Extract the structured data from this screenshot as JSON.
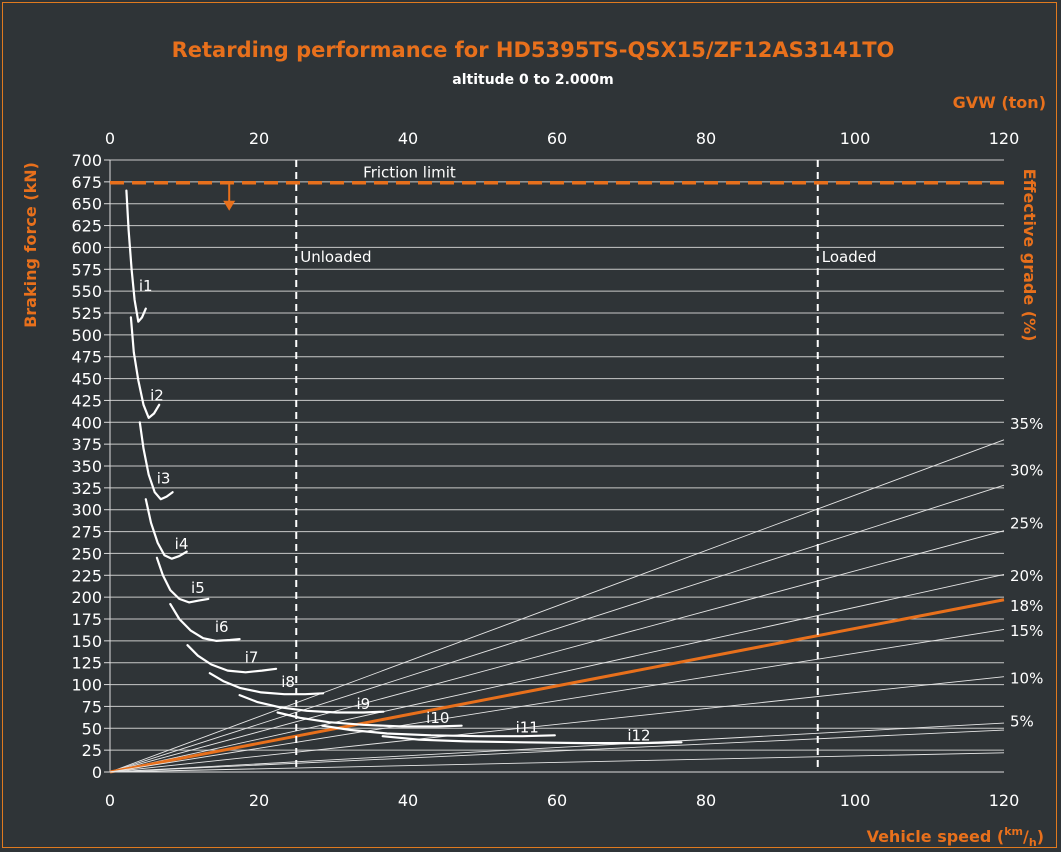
{
  "chart_data": {
    "type": "line",
    "title": "Retarding performance for HD5395TS-QSX15/ZF12AS3141TO",
    "subtitle": "altitude 0 to 2.000m",
    "xlabel": "Vehicle speed",
    "xlabel_unit_num": "km",
    "xlabel_unit_den": "h",
    "ylabel": "Braking force (kN)",
    "y2label": "Effective grade (%)",
    "x2label": "GVW (ton)",
    "xlim": [
      0,
      120
    ],
    "ylim": [
      0,
      700
    ],
    "x2lim": [
      0,
      120
    ],
    "xticks": [
      0,
      20,
      40,
      60,
      80,
      100,
      120
    ],
    "x2ticks": [
      0,
      20,
      40,
      60,
      80,
      100,
      120
    ],
    "yticks": [
      0,
      25,
      50,
      75,
      100,
      125,
      150,
      175,
      200,
      225,
      250,
      275,
      300,
      325,
      350,
      375,
      400,
      425,
      450,
      475,
      500,
      525,
      550,
      575,
      600,
      625,
      650,
      675,
      700
    ],
    "grid": true,
    "friction_limit": {
      "label": "Friction limit",
      "value": 674,
      "color": "#e8701c",
      "arrow_x": 16
    },
    "gvw_markers": [
      {
        "label": "Unloaded",
        "gvw": 25
      },
      {
        "label": "Loaded",
        "gvw": 95
      }
    ],
    "grade_lines": [
      {
        "label": "35%",
        "end_force": 380,
        "label_force": 398
      },
      {
        "label": "30%",
        "end_force": 328,
        "label_force": 345
      },
      {
        "label": "25%",
        "end_force": 276,
        "label_force": 284
      },
      {
        "label": "20%",
        "end_force": 226,
        "label_force": 224
      },
      {
        "label": "18%",
        "end_force": 197,
        "label_force": 190,
        "highlight": true,
        "color": "#e8701c"
      },
      {
        "label": "15%",
        "end_force": 163,
        "label_force": 161
      },
      {
        "label": "10%",
        "end_force": 109,
        "label_force": 107
      },
      {
        "label": "5%",
        "end_force": 56,
        "label_force": 58
      },
      {
        "label": "",
        "end_force": 48
      },
      {
        "label": "",
        "end_force": 22
      }
    ],
    "gears": [
      {
        "name": "i1",
        "label_x": 4.8,
        "label_y": 550,
        "points": [
          [
            2.2,
            665
          ],
          [
            2.5,
            620
          ],
          [
            2.9,
            575
          ],
          [
            3.3,
            540
          ],
          [
            3.8,
            515
          ],
          [
            4.3,
            520
          ],
          [
            4.8,
            530
          ]
        ]
      },
      {
        "name": "i2",
        "label_x": 6.3,
        "label_y": 425,
        "points": [
          [
            2.8,
            520
          ],
          [
            3.2,
            480
          ],
          [
            3.8,
            448
          ],
          [
            4.5,
            420
          ],
          [
            5.2,
            405
          ],
          [
            5.9,
            410
          ],
          [
            6.6,
            420
          ]
        ]
      },
      {
        "name": "i3",
        "label_x": 7.2,
        "label_y": 330,
        "points": [
          [
            4.0,
            400
          ],
          [
            4.5,
            370
          ],
          [
            5.2,
            340
          ],
          [
            6.0,
            320
          ],
          [
            6.8,
            312
          ],
          [
            7.6,
            315
          ],
          [
            8.4,
            320
          ]
        ]
      },
      {
        "name": "i4",
        "label_x": 9.6,
        "label_y": 255,
        "points": [
          [
            4.8,
            312
          ],
          [
            5.5,
            285
          ],
          [
            6.4,
            262
          ],
          [
            7.3,
            248
          ],
          [
            8.3,
            244
          ],
          [
            9.3,
            247
          ],
          [
            10.3,
            252
          ]
        ]
      },
      {
        "name": "i5",
        "label_x": 11.8,
        "label_y": 205,
        "points": [
          [
            6.3,
            245
          ],
          [
            7.1,
            225
          ],
          [
            8.1,
            208
          ],
          [
            9.3,
            198
          ],
          [
            10.6,
            194
          ],
          [
            11.9,
            196
          ],
          [
            13.2,
            198
          ]
        ]
      },
      {
        "name": "i6",
        "label_x": 15.0,
        "label_y": 160,
        "points": [
          [
            8.1,
            192
          ],
          [
            9.3,
            175
          ],
          [
            10.8,
            162
          ],
          [
            12.5,
            153
          ],
          [
            14.3,
            150
          ],
          [
            16.1,
            151
          ],
          [
            17.4,
            152
          ]
        ]
      },
      {
        "name": "i7",
        "label_x": 19.0,
        "label_y": 125,
        "points": [
          [
            10.4,
            145
          ],
          [
            11.8,
            133
          ],
          [
            13.6,
            123
          ],
          [
            15.8,
            116
          ],
          [
            18.2,
            114
          ],
          [
            20.4,
            116
          ],
          [
            22.3,
            118
          ]
        ]
      },
      {
        "name": "i8",
        "label_x": 23.9,
        "label_y": 97,
        "points": [
          [
            13.4,
            113
          ],
          [
            15.2,
            104
          ],
          [
            17.5,
            96
          ],
          [
            20.3,
            91
          ],
          [
            23.4,
            89
          ],
          [
            26.2,
            89
          ],
          [
            28.6,
            90
          ]
        ]
      },
      {
        "name": "i9",
        "label_x": 34.0,
        "label_y": 72,
        "points": [
          [
            17.4,
            88
          ],
          [
            19.8,
            80
          ],
          [
            22.8,
            74
          ],
          [
            26.4,
            70
          ],
          [
            30.4,
            68
          ],
          [
            34.0,
            68
          ],
          [
            36.7,
            69
          ]
        ]
      },
      {
        "name": "i10",
        "label_x": 44.0,
        "label_y": 56,
        "points": [
          [
            22.5,
            68
          ],
          [
            25.5,
            62
          ],
          [
            29.4,
            57
          ],
          [
            34.0,
            54
          ],
          [
            39.2,
            52
          ],
          [
            43.8,
            52
          ],
          [
            47.2,
            53
          ]
        ]
      },
      {
        "name": "i11",
        "label_x": 56.0,
        "label_y": 45,
        "points": [
          [
            28.5,
            53
          ],
          [
            32.3,
            48
          ],
          [
            37.2,
            44
          ],
          [
            43.1,
            42
          ],
          [
            49.6,
            41
          ],
          [
            55.4,
            41
          ],
          [
            59.7,
            42
          ]
        ]
      },
      {
        "name": "i12",
        "label_x": 71.0,
        "label_y": 36,
        "points": [
          [
            36.6,
            41
          ],
          [
            41.5,
            37
          ],
          [
            47.8,
            35
          ],
          [
            55.4,
            34
          ],
          [
            63.7,
            33
          ],
          [
            71.1,
            33
          ],
          [
            76.7,
            34
          ]
        ]
      }
    ]
  }
}
